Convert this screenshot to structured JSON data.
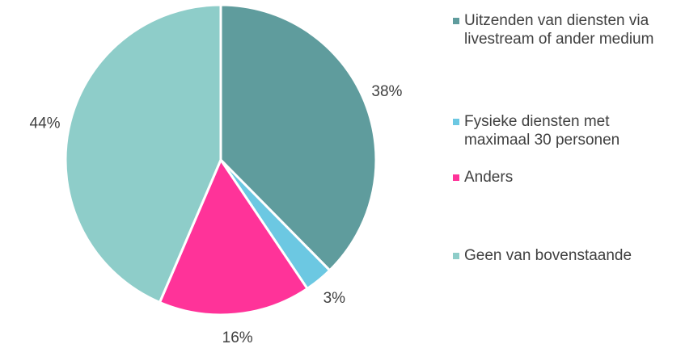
{
  "chart_data": {
    "type": "pie",
    "categories": [
      "Uitzenden van diensten via livestream of ander medium",
      "Fysieke diensten met maximaal 30 personen",
      "Anders",
      "Geen van bovenstaande"
    ],
    "values": [
      38,
      3,
      16,
      44
    ],
    "value_labels": [
      "38%",
      "3%",
      "16%",
      "44%"
    ],
    "colors": [
      "#5f9c9d",
      "#6cc8e2",
      "#ff3399",
      "#8ecdc9"
    ],
    "legend": "right"
  }
}
